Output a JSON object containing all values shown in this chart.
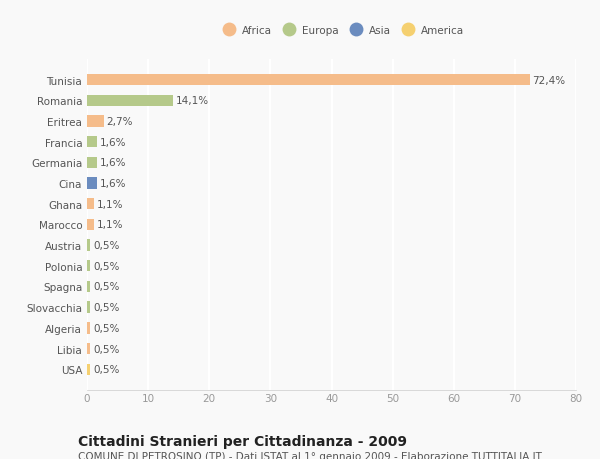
{
  "categories": [
    "Tunisia",
    "Romania",
    "Eritrea",
    "Francia",
    "Germania",
    "Cina",
    "Ghana",
    "Marocco",
    "Austria",
    "Polonia",
    "Spagna",
    "Slovacchia",
    "Algeria",
    "Libia",
    "USA"
  ],
  "values": [
    72.4,
    14.1,
    2.7,
    1.6,
    1.6,
    1.6,
    1.1,
    1.1,
    0.5,
    0.5,
    0.5,
    0.5,
    0.5,
    0.5,
    0.5
  ],
  "labels": [
    "72,4%",
    "14,1%",
    "2,7%",
    "1,6%",
    "1,6%",
    "1,6%",
    "1,1%",
    "1,1%",
    "0,5%",
    "0,5%",
    "0,5%",
    "0,5%",
    "0,5%",
    "0,5%",
    "0,5%"
  ],
  "colors": [
    "#f5bc8a",
    "#b5c98a",
    "#f5bc8a",
    "#b5c98a",
    "#b5c98a",
    "#6b8cbf",
    "#f5bc8a",
    "#f5bc8a",
    "#b5c98a",
    "#b5c98a",
    "#b5c98a",
    "#b5c98a",
    "#f5bc8a",
    "#f5bc8a",
    "#f5d070"
  ],
  "legend_labels": [
    "Africa",
    "Europa",
    "Asia",
    "America"
  ],
  "legend_colors": [
    "#f5bc8a",
    "#b5c98a",
    "#6b8cbf",
    "#f5d070"
  ],
  "xlim": [
    0,
    80
  ],
  "xticks": [
    0,
    10,
    20,
    30,
    40,
    50,
    60,
    70,
    80
  ],
  "title": "Cittadini Stranieri per Cittadinanza - 2009",
  "subtitle": "COMUNE DI PETROSINO (TP) - Dati ISTAT al 1° gennaio 2009 - Elaborazione TUTTITALIA.IT",
  "bg_color": "#f9f9f9",
  "bar_height": 0.55,
  "grid_color": "#ffffff",
  "text_color": "#555555",
  "label_fontsize": 7.5,
  "title_fontsize": 10,
  "subtitle_fontsize": 7.5
}
